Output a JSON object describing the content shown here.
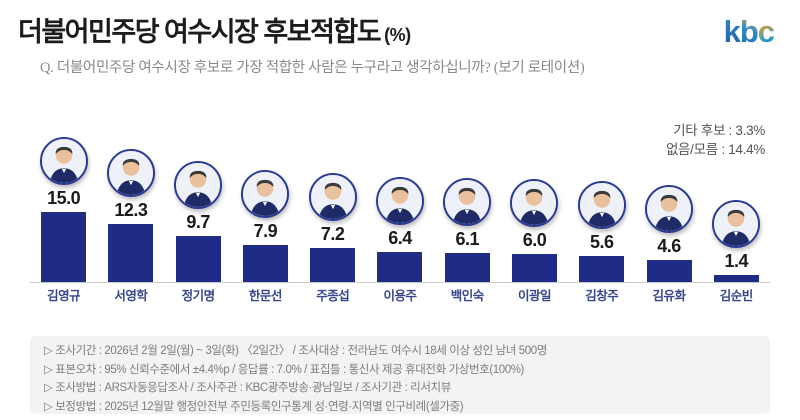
{
  "header": {
    "title": "더불어민주당 여수시장 후보적합도",
    "title_unit": "(%)",
    "logo_letters": [
      "k",
      "b",
      "c"
    ],
    "logo_colors": {
      "blue": "#2f8ccb",
      "orange": "#f2a31e"
    }
  },
  "question": "Q. 더불어민주당 여수시장 후보로 가장 적합한 사람은 누구라고 생각하십니까? (보기 로테이션)",
  "side_note": {
    "line1": "기타 후보 : 3.3%",
    "line2": "없음/모름 : 14.4%"
  },
  "chart_data": {
    "type": "bar",
    "title": "더불어민주당 여수시장 후보적합도 (%)",
    "unit": "%",
    "categories": [
      "김영규",
      "서영학",
      "정기명",
      "한문선",
      "주종섭",
      "이용주",
      "백인숙",
      "이광일",
      "김창주",
      "김유화",
      "김순빈"
    ],
    "values": [
      15.0,
      12.3,
      9.7,
      7.9,
      7.2,
      6.4,
      6.1,
      6.0,
      5.6,
      4.6,
      1.4
    ],
    "value_labels": [
      "15.0",
      "12.3",
      "9.7",
      "7.9",
      "7.2",
      "6.4",
      "6.1",
      "6.0",
      "5.6",
      "4.6",
      "1.4"
    ],
    "annotations": [
      {
        "label": "기타 후보",
        "value": 3.3
      },
      {
        "label": "없음/모름",
        "value": 14.4
      }
    ],
    "bar_color": "#1e2b87",
    "ylim": [
      0,
      16
    ],
    "grid": false,
    "legend": false
  },
  "footer": {
    "lines": [
      "▷ 조사기간 : 2026년 2월 2일(월) ~ 3일(화) 〈2일간〉 / 조사대상 : 전라남도 여수시 18세 이상 성인 남녀 500명",
      "▷ 표본오차 : 95% 신뢰수준에서 ±4.4%p / 응답률 : 7.0% / 표집틀 : 통신사 제공 휴대전화 가상번호(100%)",
      "▷ 조사방법 : ARS자동응답조사 / 조사주관 : KBC광주방송·광남일보 / 조사기관 : 리서치뷰",
      "▷ 보정방법 : 2025년 12월말 행정안전부 주민등록인구통계 성·연령·지역별 인구비례(셀가중)"
    ]
  }
}
